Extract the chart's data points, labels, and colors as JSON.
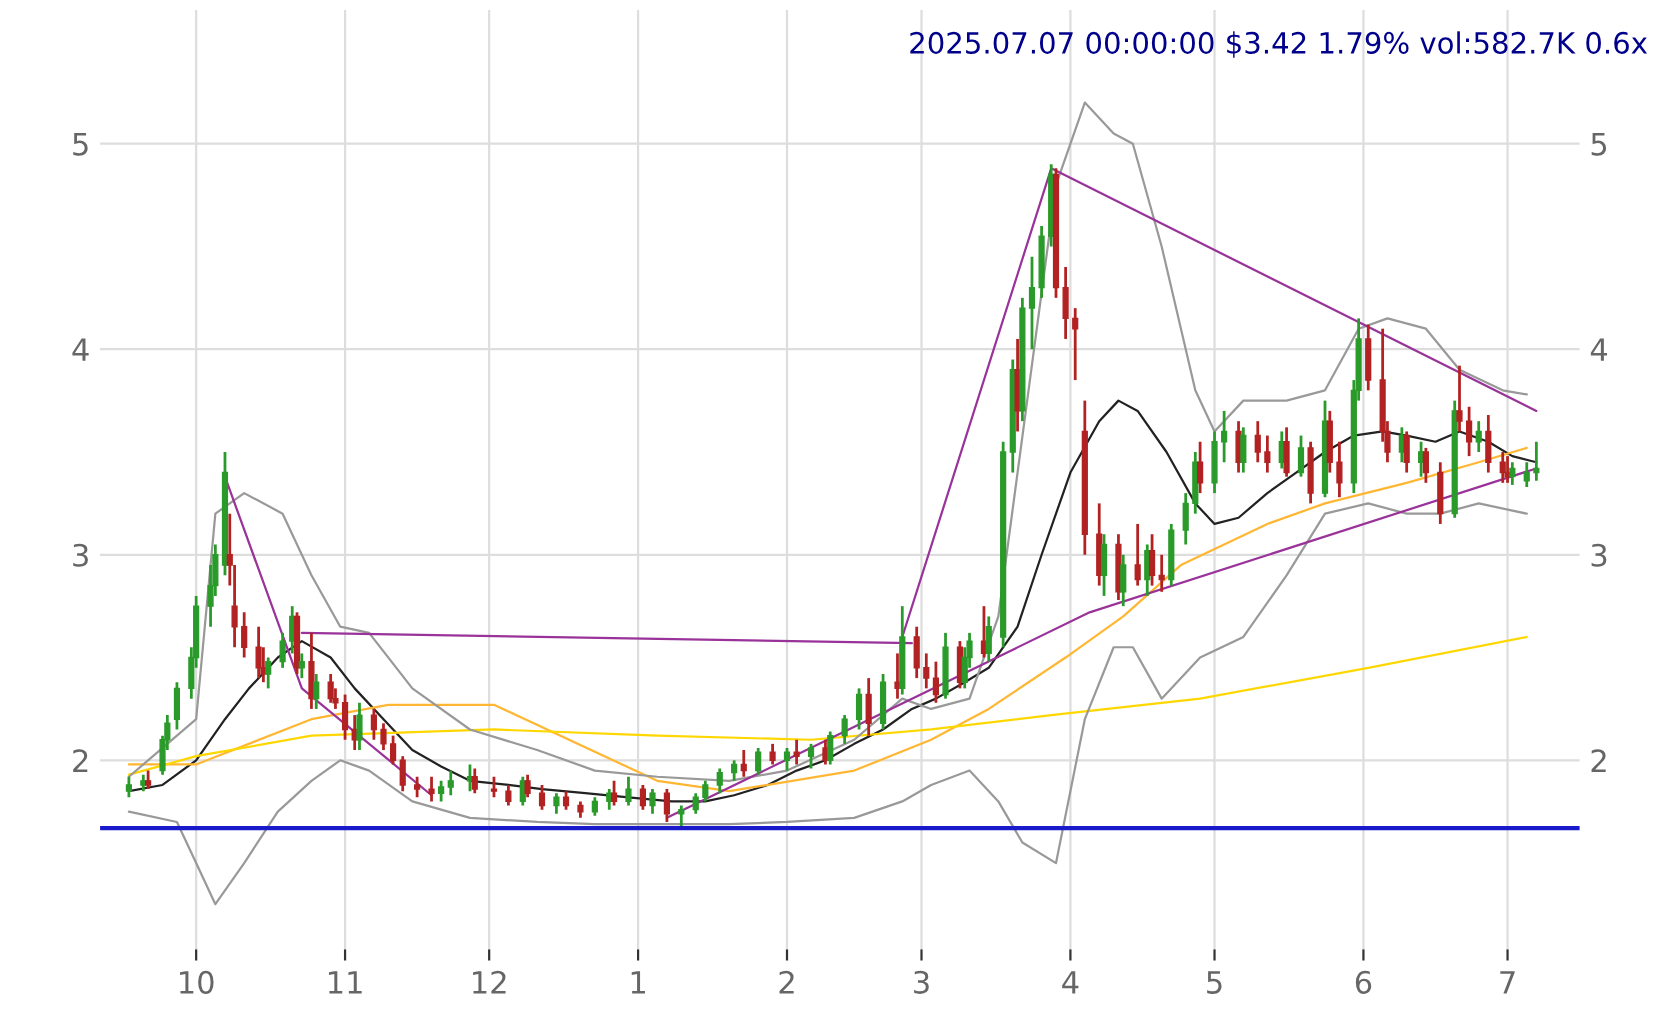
{
  "chart_data": {
    "type": "candlestick",
    "title": "2025.07.07 00:00:00 $3.42 1.79% vol:582.7K 0.6x",
    "xlim": [
      "2024-09-11",
      "2025-07-16"
    ],
    "ylim": [
      1.08,
      5.65
    ],
    "y2lim": [
      1.08,
      5.65
    ],
    "yticks": [
      2,
      3,
      4,
      5
    ],
    "y2ticks": [
      2,
      3,
      4,
      5
    ],
    "xticks": [
      {
        "value": "2024-10-01",
        "label": "10"
      },
      {
        "value": "2024-11-01",
        "label": "11"
      },
      {
        "value": "2024-12-01",
        "label": "12"
      },
      {
        "value": "2025-01-01",
        "label": "1"
      },
      {
        "value": "2025-02-01",
        "label": "2"
      },
      {
        "value": "2025-03-01",
        "label": "3"
      },
      {
        "value": "2025-04-01",
        "label": "4"
      },
      {
        "value": "2025-05-01",
        "label": "5"
      },
      {
        "value": "2025-06-01",
        "label": "6"
      },
      {
        "value": "2025-07-01",
        "label": "7"
      }
    ],
    "grid": true,
    "ref_lines": [
      {
        "axis": "y",
        "value": 1.67,
        "color": "#1a1acc"
      }
    ],
    "series": [
      {
        "x": [
          "2024-09-17",
          "2024-09-20",
          "2024-09-21",
          "2024-09-24",
          "2024-09-25",
          "2024-09-27",
          "2024-09-30",
          "2024-10-01",
          "2024-10-04",
          "2024-10-05",
          "2024-10-07",
          "2024-10-08",
          "2024-10-09",
          "2024-10-11",
          "2024-10-14",
          "2024-10-15",
          "2024-10-16",
          "2024-10-19",
          "2024-10-21",
          "2024-10-22",
          "2024-10-23",
          "2024-10-25",
          "2024-10-26",
          "2024-10-29",
          "2024-10-30",
          "2024-11-01",
          "2024-11-03",
          "2024-11-04",
          "2024-11-07",
          "2024-11-09",
          "2024-11-11",
          "2024-11-13",
          "2024-11-16",
          "2024-11-19",
          "2024-11-21",
          "2024-11-23",
          "2024-11-27",
          "2024-11-28",
          "2024-12-02",
          "2024-12-05",
          "2024-12-08",
          "2024-12-09",
          "2024-12-12",
          "2024-12-15",
          "2024-12-17",
          "2024-12-20",
          "2024-12-23",
          "2024-12-26",
          "2024-12-27",
          "2024-12-30",
          "2025-01-02",
          "2025-01-04",
          "2025-01-07",
          "2025-01-10",
          "2025-01-13",
          "2025-01-15",
          "2025-01-18",
          "2025-01-21",
          "2025-01-23",
          "2025-01-26",
          "2025-01-29",
          "2025-02-01",
          "2025-02-03",
          "2025-02-06",
          "2025-02-09",
          "2025-02-10",
          "2025-02-13",
          "2025-02-16",
          "2025-02-18",
          "2025-02-21",
          "2025-02-24",
          "2025-02-25",
          "2025-02-28",
          "2025-03-02",
          "2025-03-04",
          "2025-03-06",
          "2025-03-09",
          "2025-03-10",
          "2025-03-11",
          "2025-03-14",
          "2025-03-15",
          "2025-03-18",
          "2025-03-20",
          "2025-03-21",
          "2025-03-22",
          "2025-03-24",
          "2025-03-26",
          "2025-03-28",
          "2025-03-29",
          "2025-03-31",
          "2025-04-02",
          "2025-04-04",
          "2025-04-07",
          "2025-04-08",
          "2025-04-11",
          "2025-04-12",
          "2025-04-15",
          "2025-04-17",
          "2025-04-18",
          "2025-04-20",
          "2025-04-22",
          "2025-04-25",
          "2025-04-27",
          "2025-04-28",
          "2025-05-01",
          "2025-05-03",
          "2025-05-06",
          "2025-05-07",
          "2025-05-10",
          "2025-05-12",
          "2025-05-15",
          "2025-05-16",
          "2025-05-19",
          "2025-05-21",
          "2025-05-24",
          "2025-05-25",
          "2025-05-27",
          "2025-05-30",
          "2025-05-31",
          "2025-06-02",
          "2025-06-05",
          "2025-06-06",
          "2025-06-09",
          "2025-06-10",
          "2025-06-13",
          "2025-06-14",
          "2025-06-17",
          "2025-06-20",
          "2025-06-21",
          "2025-06-23",
          "2025-06-25",
          "2025-06-27",
          "2025-06-30",
          "2025-07-01",
          "2025-07-02",
          "2025-07-05",
          "2025-07-07"
        ],
        "colors": [
          "#2a9a2a",
          "#2a9a2a",
          "#b22222",
          "#2a9a2a",
          "#2a9a2a",
          "#2a9a2a",
          "#2a9a2a",
          "#2a9a2a",
          "#2a9a2a",
          "#2a9a2a",
          "#2a9a2a",
          "#b22222",
          "#b22222",
          "#b22222",
          "#b22222",
          "#b22222",
          "#2a9a2a",
          "#2a9a2a",
          "#2a9a2a",
          "#b22222",
          "#2a9a2a",
          "#b22222",
          "#2a9a2a",
          "#b22222",
          "#b22222",
          "#b22222",
          "#b22222",
          "#2a9a2a",
          "#b22222",
          "#b22222",
          "#b22222",
          "#b22222",
          "#b22222",
          "#b22222",
          "#2a9a2a",
          "#2a9a2a",
          "#2a9a2a",
          "#b22222",
          "#b22222",
          "#b22222",
          "#2a9a2a",
          "#b22222",
          "#b22222",
          "#2a9a2a",
          "#b22222",
          "#b22222",
          "#2a9a2a",
          "#2a9a2a",
          "#b22222",
          "#2a9a2a",
          "#b22222",
          "#2a9a2a",
          "#b22222",
          "#2a9a2a",
          "#2a9a2a",
          "#2a9a2a",
          "#2a9a2a",
          "#2a9a2a",
          "#b22222",
          "#2a9a2a",
          "#b22222",
          "#2a9a2a",
          "#b22222",
          "#2a9a2a",
          "#b22222",
          "#2a9a2a",
          "#2a9a2a",
          "#2a9a2a",
          "#b22222",
          "#2a9a2a",
          "#b22222",
          "#2a9a2a",
          "#b22222",
          "#b22222",
          "#b22222",
          "#2a9a2a",
          "#b22222",
          "#2a9a2a",
          "#2a9a2a",
          "#b22222",
          "#2a9a2a",
          "#2a9a2a",
          "#2a9a2a",
          "#b22222",
          "#2a9a2a",
          "#2a9a2a",
          "#2a9a2a",
          "#2a9a2a",
          "#b22222",
          "#b22222",
          "#b22222",
          "#b22222",
          "#b22222",
          "#2a9a2a",
          "#b22222",
          "#2a9a2a",
          "#b22222",
          "#2a9a2a",
          "#b22222",
          "#b22222",
          "#2a9a2a",
          "#2a9a2a",
          "#2a9a2a",
          "#b22222",
          "#2a9a2a",
          "#2a9a2a",
          "#b22222",
          "#2a9a2a",
          "#b22222",
          "#b22222",
          "#2a9a2a",
          "#b22222",
          "#2a9a2a",
          "#b22222",
          "#2a9a2a",
          "#b22222",
          "#b22222",
          "#2a9a2a",
          "#2a9a2a",
          "#b22222",
          "#b22222",
          "#b22222",
          "#2a9a2a",
          "#b22222",
          "#2a9a2a",
          "#b22222",
          "#b22222",
          "#2a9a2a",
          "#b22222",
          "#b22222",
          "#2a9a2a",
          "#b22222",
          "#b22222",
          "#b22222",
          "#2a9a2a",
          "#2a9a2a",
          "#2a9a2a"
        ],
        "ohlc": [
          [
            1.85,
            1.92,
            1.82,
            1.88
          ],
          [
            1.88,
            1.93,
            1.85,
            1.9
          ],
          [
            1.9,
            1.95,
            1.86,
            1.88
          ],
          [
            1.95,
            2.12,
            1.93,
            2.1
          ],
          [
            2.1,
            2.22,
            2.05,
            2.18
          ],
          [
            2.2,
            2.38,
            2.15,
            2.35
          ],
          [
            2.35,
            2.55,
            2.3,
            2.5
          ],
          [
            2.5,
            2.8,
            2.45,
            2.75
          ],
          [
            2.75,
            2.95,
            2.65,
            2.85
          ],
          [
            2.85,
            3.05,
            2.8,
            3.0
          ],
          [
            2.95,
            3.5,
            2.9,
            3.4
          ],
          [
            3.0,
            3.2,
            2.85,
            2.95
          ],
          [
            2.75,
            2.95,
            2.55,
            2.65
          ],
          [
            2.65,
            2.72,
            2.5,
            2.55
          ],
          [
            2.55,
            2.65,
            2.4,
            2.45
          ],
          [
            2.45,
            2.55,
            2.38,
            2.42
          ],
          [
            2.42,
            2.5,
            2.35,
            2.48
          ],
          [
            2.48,
            2.62,
            2.45,
            2.58
          ],
          [
            2.58,
            2.75,
            2.52,
            2.7
          ],
          [
            2.7,
            2.72,
            2.42,
            2.45
          ],
          [
            2.45,
            2.52,
            2.4,
            2.48
          ],
          [
            2.48,
            2.62,
            2.25,
            2.3
          ],
          [
            2.3,
            2.42,
            2.25,
            2.38
          ],
          [
            2.38,
            2.42,
            2.28,
            2.3
          ],
          [
            2.3,
            2.35,
            2.25,
            2.28
          ],
          [
            2.28,
            2.32,
            2.1,
            2.15
          ],
          [
            2.15,
            2.22,
            2.05,
            2.1
          ],
          [
            2.1,
            2.28,
            2.05,
            2.22
          ],
          [
            2.22,
            2.25,
            2.1,
            2.15
          ],
          [
            2.15,
            2.18,
            2.05,
            2.08
          ],
          [
            2.08,
            2.12,
            1.98,
            2.0
          ],
          [
            2.0,
            2.02,
            1.85,
            1.88
          ],
          [
            1.88,
            1.92,
            1.82,
            1.86
          ],
          [
            1.86,
            1.92,
            1.8,
            1.84
          ],
          [
            1.84,
            1.9,
            1.8,
            1.87
          ],
          [
            1.87,
            1.95,
            1.83,
            1.9
          ],
          [
            1.9,
            1.98,
            1.85,
            1.92
          ],
          [
            1.92,
            1.96,
            1.84,
            1.86
          ],
          [
            1.86,
            1.92,
            1.82,
            1.85
          ],
          [
            1.85,
            1.88,
            1.78,
            1.8
          ],
          [
            1.8,
            1.92,
            1.78,
            1.9
          ],
          [
            1.9,
            1.93,
            1.82,
            1.84
          ],
          [
            1.84,
            1.88,
            1.76,
            1.78
          ],
          [
            1.78,
            1.84,
            1.74,
            1.82
          ],
          [
            1.82,
            1.85,
            1.76,
            1.78
          ],
          [
            1.78,
            1.8,
            1.72,
            1.75
          ],
          [
            1.75,
            1.82,
            1.73,
            1.8
          ],
          [
            1.8,
            1.86,
            1.76,
            1.84
          ],
          [
            1.84,
            1.9,
            1.78,
            1.8
          ],
          [
            1.8,
            1.92,
            1.78,
            1.86
          ],
          [
            1.86,
            1.88,
            1.76,
            1.78
          ],
          [
            1.78,
            1.86,
            1.74,
            1.84
          ],
          [
            1.84,
            1.86,
            1.7,
            1.74
          ],
          [
            1.74,
            1.78,
            1.68,
            1.76
          ],
          [
            1.76,
            1.84,
            1.74,
            1.82
          ],
          [
            1.82,
            1.9,
            1.8,
            1.88
          ],
          [
            1.88,
            1.96,
            1.84,
            1.94
          ],
          [
            1.94,
            2.0,
            1.9,
            1.98
          ],
          [
            1.98,
            2.05,
            1.92,
            1.95
          ],
          [
            1.95,
            2.06,
            1.93,
            2.04
          ],
          [
            2.04,
            2.08,
            1.98,
            2.0
          ],
          [
            2.0,
            2.06,
            1.95,
            2.04
          ],
          [
            2.04,
            2.1,
            1.98,
            2.02
          ],
          [
            2.02,
            2.08,
            1.96,
            2.06
          ],
          [
            2.06,
            2.1,
            1.98,
            2.0
          ],
          [
            2.0,
            2.14,
            1.98,
            2.12
          ],
          [
            2.12,
            2.22,
            2.08,
            2.2
          ],
          [
            2.2,
            2.35,
            2.15,
            2.32
          ],
          [
            2.32,
            2.4,
            2.12,
            2.18
          ],
          [
            2.18,
            2.42,
            2.15,
            2.38
          ],
          [
            2.38,
            2.52,
            2.3,
            2.35
          ],
          [
            2.35,
            2.75,
            2.32,
            2.6
          ],
          [
            2.6,
            2.65,
            2.4,
            2.45
          ],
          [
            2.45,
            2.52,
            2.35,
            2.4
          ],
          [
            2.4,
            2.48,
            2.28,
            2.32
          ],
          [
            2.32,
            2.62,
            2.3,
            2.55
          ],
          [
            2.55,
            2.58,
            2.35,
            2.38
          ],
          [
            2.38,
            2.55,
            2.35,
            2.5
          ],
          [
            2.5,
            2.62,
            2.45,
            2.58
          ],
          [
            2.58,
            2.75,
            2.5,
            2.52
          ],
          [
            2.52,
            2.7,
            2.48,
            2.65
          ],
          [
            2.6,
            3.55,
            2.55,
            3.5
          ],
          [
            3.5,
            3.95,
            3.4,
            3.9
          ],
          [
            3.9,
            4.05,
            3.6,
            3.7
          ],
          [
            3.7,
            4.25,
            3.65,
            4.2
          ],
          [
            4.2,
            4.45,
            4.0,
            4.3
          ],
          [
            4.3,
            4.6,
            4.25,
            4.55
          ],
          [
            4.55,
            4.9,
            4.5,
            4.85
          ],
          [
            4.85,
            4.88,
            4.25,
            4.3
          ],
          [
            4.3,
            4.4,
            4.05,
            4.15
          ],
          [
            4.15,
            4.2,
            3.85,
            4.1
          ],
          [
            3.6,
            3.75,
            3.0,
            3.1
          ],
          [
            3.1,
            3.25,
            2.85,
            2.9
          ],
          [
            2.9,
            3.1,
            2.8,
            3.05
          ],
          [
            3.05,
            3.1,
            2.78,
            2.82
          ],
          [
            2.82,
            3.0,
            2.75,
            2.95
          ],
          [
            2.95,
            3.15,
            2.85,
            2.88
          ],
          [
            2.88,
            3.05,
            2.8,
            3.02
          ],
          [
            3.02,
            3.1,
            2.85,
            2.9
          ],
          [
            2.9,
            3.0,
            2.82,
            2.88
          ],
          [
            2.88,
            3.15,
            2.85,
            3.12
          ],
          [
            3.12,
            3.3,
            3.05,
            3.25
          ],
          [
            3.25,
            3.5,
            3.2,
            3.45
          ],
          [
            3.45,
            3.55,
            3.3,
            3.35
          ],
          [
            3.35,
            3.6,
            3.3,
            3.55
          ],
          [
            3.55,
            3.7,
            3.45,
            3.6
          ],
          [
            3.6,
            3.65,
            3.4,
            3.45
          ],
          [
            3.45,
            3.62,
            3.4,
            3.58
          ],
          [
            3.58,
            3.65,
            3.45,
            3.5
          ],
          [
            3.5,
            3.58,
            3.4,
            3.45
          ],
          [
            3.45,
            3.6,
            3.42,
            3.55
          ],
          [
            3.55,
            3.62,
            3.38,
            3.4
          ],
          [
            3.4,
            3.58,
            3.38,
            3.52
          ],
          [
            3.52,
            3.55,
            3.25,
            3.3
          ],
          [
            3.3,
            3.75,
            3.28,
            3.65
          ],
          [
            3.65,
            3.7,
            3.4,
            3.45
          ],
          [
            3.45,
            3.55,
            3.28,
            3.35
          ],
          [
            3.35,
            3.85,
            3.3,
            3.8
          ],
          [
            3.8,
            4.15,
            3.75,
            4.05
          ],
          [
            4.05,
            4.12,
            3.8,
            3.85
          ],
          [
            3.85,
            4.1,
            3.55,
            3.6
          ],
          [
            3.6,
            3.65,
            3.45,
            3.5
          ],
          [
            3.5,
            3.62,
            3.45,
            3.58
          ],
          [
            3.58,
            3.6,
            3.4,
            3.45
          ],
          [
            3.45,
            3.55,
            3.38,
            3.5
          ],
          [
            3.5,
            3.52,
            3.35,
            3.4
          ],
          [
            3.4,
            3.45,
            3.15,
            3.2
          ],
          [
            3.2,
            3.75,
            3.18,
            3.7
          ],
          [
            3.7,
            3.92,
            3.6,
            3.65
          ],
          [
            3.65,
            3.72,
            3.48,
            3.55
          ],
          [
            3.55,
            3.65,
            3.5,
            3.6
          ],
          [
            3.6,
            3.68,
            3.4,
            3.45
          ],
          [
            3.45,
            3.5,
            3.35,
            3.4
          ],
          [
            3.4,
            3.48,
            3.35,
            3.38
          ],
          [
            3.38,
            3.45,
            3.34,
            3.42
          ],
          [
            3.36,
            3.45,
            3.33,
            3.4
          ],
          [
            3.4,
            3.55,
            3.36,
            3.42
          ]
        ]
      },
      {
        "type": "line",
        "color": "#222222",
        "x": [
          "2024-09-17",
          "2024-09-24",
          "2024-10-01",
          "2024-10-07",
          "2024-10-12",
          "2024-10-18",
          "2024-10-23",
          "2024-10-29",
          "2024-11-03",
          "2024-11-09",
          "2024-11-15",
          "2024-11-21",
          "2024-11-27",
          "2024-12-05",
          "2024-12-12",
          "2024-12-21",
          "2024-12-30",
          "2025-01-08",
          "2025-01-15",
          "2025-01-21",
          "2025-01-28",
          "2025-02-03",
          "2025-02-09",
          "2025-02-15",
          "2025-02-21",
          "2025-02-27",
          "2025-03-04",
          "2025-03-10",
          "2025-03-15",
          "2025-03-21",
          "2025-03-26",
          "2025-04-01",
          "2025-04-07",
          "2025-04-11",
          "2025-04-15",
          "2025-04-21",
          "2025-04-27",
          "2025-05-01",
          "2025-05-06",
          "2025-05-12",
          "2025-05-18",
          "2025-05-24",
          "2025-05-30",
          "2025-06-05",
          "2025-06-10",
          "2025-06-16",
          "2025-06-21",
          "2025-06-27",
          "2025-07-02",
          "2025-07-07"
        ],
        "values": [
          1.85,
          1.88,
          2.0,
          2.2,
          2.35,
          2.5,
          2.58,
          2.5,
          2.35,
          2.2,
          2.05,
          1.97,
          1.9,
          1.88,
          1.86,
          1.84,
          1.82,
          1.8,
          1.8,
          1.83,
          1.88,
          1.95,
          2.0,
          2.08,
          2.15,
          2.25,
          2.3,
          2.38,
          2.45,
          2.65,
          3.0,
          3.4,
          3.65,
          3.75,
          3.7,
          3.5,
          3.25,
          3.15,
          3.18,
          3.3,
          3.4,
          3.5,
          3.58,
          3.6,
          3.58,
          3.55,
          3.6,
          3.55,
          3.48,
          3.45
        ]
      },
      {
        "type": "line",
        "color": "#ffb733",
        "x": [
          "2024-09-17",
          "2024-10-01",
          "2024-10-25",
          "2024-11-10",
          "2024-12-02",
          "2025-01-05",
          "2025-01-20",
          "2025-02-15",
          "2025-03-03",
          "2025-03-15",
          "2025-03-31",
          "2025-04-12",
          "2025-04-24",
          "2025-05-12",
          "2025-05-24",
          "2025-06-10",
          "2025-06-25",
          "2025-07-05"
        ],
        "values": [
          1.98,
          1.98,
          2.2,
          2.27,
          2.27,
          1.9,
          1.85,
          1.95,
          2.1,
          2.25,
          2.5,
          2.7,
          2.95,
          3.15,
          3.25,
          3.35,
          3.45,
          3.52
        ]
      },
      {
        "type": "line",
        "color": "#ffd700",
        "x": [
          "2024-09-17",
          "2024-10-01",
          "2024-10-25",
          "2024-12-02",
          "2025-01-05",
          "2025-02-06",
          "2025-03-03",
          "2025-03-28",
          "2025-04-28",
          "2025-06-02",
          "2025-07-05"
        ],
        "values": [
          1.93,
          2.02,
          2.12,
          2.15,
          2.12,
          2.1,
          2.15,
          2.22,
          2.3,
          2.45,
          2.6
        ]
      },
      {
        "type": "line",
        "color": "#999999",
        "x": [
          "2024-09-17",
          "2024-10-01",
          "2024-10-05",
          "2024-10-08",
          "2024-10-11",
          "2024-10-19",
          "2024-10-25",
          "2024-10-31",
          "2024-11-06",
          "2024-11-15",
          "2024-11-27",
          "2024-12-11",
          "2024-12-23",
          "2025-01-05",
          "2025-01-20",
          "2025-02-01",
          "2025-02-15",
          "2025-02-25",
          "2025-03-03",
          "2025-03-11",
          "2025-03-17",
          "2025-03-29",
          "2025-04-04",
          "2025-04-10",
          "2025-04-14",
          "2025-04-20",
          "2025-04-27",
          "2025-05-01",
          "2025-05-07",
          "2025-05-16",
          "2025-05-24",
          "2025-05-31",
          "2025-06-06",
          "2025-06-14",
          "2025-06-21",
          "2025-06-30",
          "2025-07-05"
        ],
        "values": [
          1.92,
          2.2,
          3.2,
          3.25,
          3.3,
          3.2,
          2.9,
          2.65,
          2.62,
          2.35,
          2.15,
          2.05,
          1.95,
          1.92,
          1.9,
          1.95,
          2.1,
          2.3,
          2.25,
          2.3,
          2.7,
          4.8,
          5.2,
          5.05,
          5.0,
          4.5,
          3.8,
          3.6,
          3.75,
          3.75,
          3.8,
          4.1,
          4.15,
          4.1,
          3.9,
          3.8,
          3.78
        ]
      },
      {
        "type": "line",
        "color": "#999999",
        "x": [
          "2024-09-17",
          "2024-09-27",
          "2024-10-01",
          "2024-10-05",
          "2024-10-11",
          "2024-10-18",
          "2024-10-25",
          "2024-10-31",
          "2024-11-06",
          "2024-11-15",
          "2024-11-27",
          "2024-12-11",
          "2024-12-23",
          "2025-01-05",
          "2025-01-20",
          "2025-02-01",
          "2025-02-15",
          "2025-02-25",
          "2025-03-03",
          "2025-03-11",
          "2025-03-17",
          "2025-03-22",
          "2025-03-29",
          "2025-04-04",
          "2025-04-10",
          "2025-04-14",
          "2025-04-20",
          "2025-04-28",
          "2025-05-07",
          "2025-05-16",
          "2025-05-24",
          "2025-06-02",
          "2025-06-10",
          "2025-06-17",
          "2025-06-25",
          "2025-07-05"
        ],
        "values": [
          1.75,
          1.7,
          1.5,
          1.3,
          1.5,
          1.75,
          1.9,
          2.0,
          1.95,
          1.8,
          1.72,
          1.7,
          1.69,
          1.69,
          1.69,
          1.7,
          1.72,
          1.8,
          1.88,
          1.95,
          1.8,
          1.6,
          1.5,
          2.2,
          2.55,
          2.55,
          2.3,
          2.5,
          2.6,
          2.9,
          3.2,
          3.25,
          3.2,
          3.2,
          3.25,
          3.2
        ]
      },
      {
        "type": "line",
        "color": "#993399",
        "x": [
          "2024-10-07",
          "2024-10-23",
          "2024-11-19"
        ],
        "values": [
          3.38,
          2.35,
          1.83
        ]
      },
      {
        "type": "line",
        "color": "#993399",
        "x": [
          "2024-10-23",
          "2025-02-27"
        ],
        "values": [
          2.62,
          2.57
        ]
      },
      {
        "type": "line",
        "color": "#993399",
        "x": [
          "2025-02-25",
          "2025-03-28",
          "2025-07-07"
        ],
        "values": [
          2.6,
          4.88,
          3.7
        ]
      },
      {
        "type": "line",
        "color": "#993399",
        "x": [
          "2025-01-07",
          "2025-04-05",
          "2025-07-07"
        ],
        "values": [
          1.72,
          2.72,
          3.42
        ]
      }
    ]
  }
}
